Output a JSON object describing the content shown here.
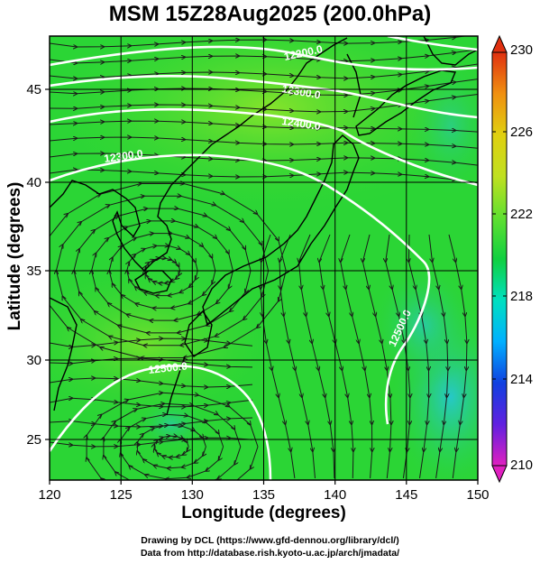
{
  "title": "MSM 15Z28Aug2025 (200.0hPa)",
  "xlabel": "Longitude (degrees)",
  "ylabel": "Latitude  (degrees)",
  "credit_line1": "Drawing by DCL (https://www.gfd-dennou.org/library/dcl/)",
  "credit_line2": "Data from http://database.rish.kyoto-u.ac.jp/arch/jmadata/",
  "x_ticks": [
    "120",
    "125",
    "130",
    "135",
    "140",
    "145",
    "150"
  ],
  "y_ticks": [
    "25",
    "30",
    "35",
    "40",
    "45"
  ],
  "colorbar": {
    "ticks": [
      "210",
      "214",
      "218",
      "222",
      "226",
      "230"
    ],
    "colors": [
      "#e020c0",
      "#6020e0",
      "#1040e0",
      "#00b0ff",
      "#00e0c0",
      "#10d040",
      "#60e030",
      "#c0e020",
      "#e0d010",
      "#f09010",
      "#e03010"
    ]
  },
  "contour_labels": [
    "12200.0",
    "12300.0",
    "12400.0",
    "12300.0",
    "12500.0",
    "12500.0"
  ],
  "map": {
    "lon_range": [
      120,
      150
    ],
    "lat_range": [
      22.5,
      47.5
    ],
    "field_colors": {
      "base": "#2bd535",
      "warm": "#7fe52a",
      "cool": "#2fd0a0",
      "coolest": "#22c8c8"
    },
    "contour_color": "#ffffff",
    "streamline_color": "#1a1a1a"
  }
}
